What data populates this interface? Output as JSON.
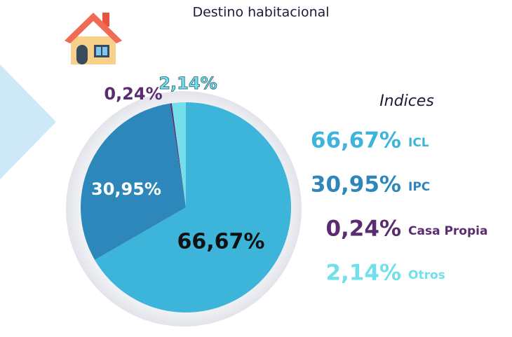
{
  "chart_data": {
    "type": "pie",
    "subtitle": "Destino habitacional",
    "legend_title": "Indices",
    "categories": [
      "ICL",
      "IPC",
      "Casa Propia",
      "Otros"
    ],
    "values": [
      66.67,
      30.95,
      0.24,
      2.14
    ],
    "value_labels": [
      "66,67%",
      "30,95%",
      "0,24%",
      "2,14%"
    ],
    "colors": [
      "#3db4d9",
      "#2d87ba",
      "#5b2c6f",
      "#72dfea"
    ]
  }
}
